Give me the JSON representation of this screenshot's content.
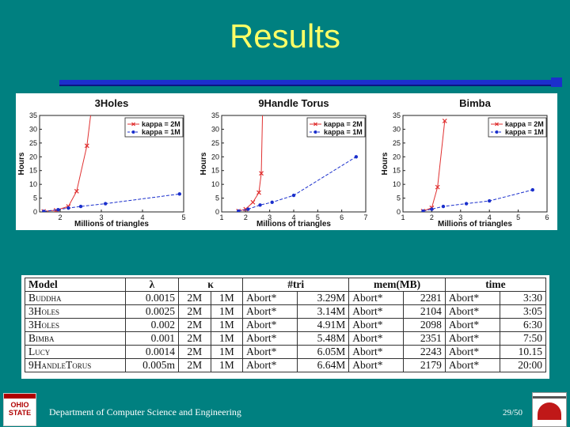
{
  "slide": {
    "title": "Results",
    "footer": "Department of Computer Science and Engineering",
    "page": "29/50",
    "logo_text": "OHIO STATE",
    "colors": {
      "background": "#008080",
      "title": "#ffff66",
      "rule": "#1c2fcc"
    }
  },
  "chart_data": [
    {
      "type": "line",
      "title": "3Holes",
      "xlabel": "Millions of triangles",
      "ylabel": "Hours",
      "xlim": [
        1.5,
        5
      ],
      "ylim": [
        0,
        35
      ],
      "xticks": [
        2,
        3,
        4,
        5
      ],
      "yticks": [
        0,
        5,
        10,
        15,
        20,
        25,
        30,
        35
      ],
      "legend": "top-right",
      "series": [
        {
          "name": "kappa = 2M",
          "color": "#e03030",
          "marker": "x",
          "dash": "solid",
          "points": [
            [
              1.6,
              0.2
            ],
            [
              1.9,
              0.6
            ],
            [
              2.2,
              2.0
            ],
            [
              2.4,
              7.5
            ],
            [
              2.65,
              24.0
            ],
            [
              2.74,
              36.0
            ]
          ]
        },
        {
          "name": "kappa = 1M",
          "color": "#1a2fcc",
          "marker": "o",
          "dash": "dashed",
          "points": [
            [
              1.6,
              0.2
            ],
            [
              1.95,
              0.8
            ],
            [
              2.2,
              1.4
            ],
            [
              2.5,
              2.0
            ],
            [
              3.1,
              3.0
            ],
            [
              4.9,
              6.5
            ]
          ]
        }
      ]
    },
    {
      "type": "line",
      "title": "9Handle Torus",
      "xlabel": "Millions of triangles",
      "ylabel": "Hours",
      "xlim": [
        1,
        7
      ],
      "ylim": [
        0,
        35
      ],
      "xticks": [
        1,
        2,
        3,
        4,
        5,
        6,
        7
      ],
      "yticks": [
        0,
        5,
        10,
        15,
        20,
        25,
        30,
        35
      ],
      "legend": "top-right",
      "series": [
        {
          "name": "kappa = 2M",
          "color": "#e03030",
          "marker": "x",
          "dash": "solid",
          "points": [
            [
              1.7,
              0.3
            ],
            [
              2.0,
              1.0
            ],
            [
              2.3,
              3.5
            ],
            [
              2.55,
              7.0
            ],
            [
              2.65,
              14.0
            ],
            [
              2.7,
              36.0
            ]
          ]
        },
        {
          "name": "kappa = 1M",
          "color": "#1a2fcc",
          "marker": "o",
          "dash": "dashed",
          "points": [
            [
              1.7,
              0.3
            ],
            [
              2.1,
              1.0
            ],
            [
              2.6,
              2.5
            ],
            [
              3.1,
              3.5
            ],
            [
              4.0,
              6.0
            ],
            [
              6.6,
              20.0
            ]
          ]
        }
      ]
    },
    {
      "type": "line",
      "title": "Bimba",
      "xlabel": "Millions of triangles",
      "ylabel": "Hours",
      "xlim": [
        1,
        6
      ],
      "ylim": [
        0,
        35
      ],
      "xticks": [
        1,
        2,
        3,
        4,
        5,
        6
      ],
      "yticks": [
        0,
        5,
        10,
        15,
        20,
        25,
        30,
        35
      ],
      "legend": "top-right",
      "series": [
        {
          "name": "kappa = 2M",
          "color": "#e03030",
          "marker": "x",
          "dash": "solid",
          "points": [
            [
              1.7,
              0.3
            ],
            [
              2.0,
              1.5
            ],
            [
              2.2,
              9.0
            ],
            [
              2.45,
              33.0
            ]
          ]
        },
        {
          "name": "kappa = 1M",
          "color": "#1a2fcc",
          "marker": "o",
          "dash": "dashed",
          "points": [
            [
              1.7,
              0.3
            ],
            [
              2.0,
              1.0
            ],
            [
              2.4,
              2.0
            ],
            [
              3.2,
              3.0
            ],
            [
              4.0,
              4.0
            ],
            [
              5.5,
              8.0
            ]
          ]
        }
      ]
    },
    {
      "type": "table",
      "headers": [
        "Model",
        "λ",
        "κ",
        "#tri",
        "mem(MB)",
        "time"
      ],
      "rows": [
        [
          "Buddha",
          "0.0015",
          "2M",
          "1M",
          "Abort*",
          "3.29M",
          "Abort*",
          "2281",
          "Abort*",
          "3:30"
        ],
        [
          "3Holes",
          "0.0025",
          "2M",
          "1M",
          "Abort*",
          "3.14M",
          "Abort*",
          "2104",
          "Abort*",
          "3:05"
        ],
        [
          "3Holes",
          "0.002",
          "2M",
          "1M",
          "Abort*",
          "4.91M",
          "Abort*",
          "2098",
          "Abort*",
          "6:30"
        ],
        [
          "Bimba",
          "0.001",
          "2M",
          "1M",
          "Abort*",
          "5.48M",
          "Abort*",
          "2351",
          "Abort*",
          "7:50"
        ],
        [
          "Lucy",
          "0.0014",
          "2M",
          "1M",
          "Abort*",
          "6.05M",
          "Abort*",
          "2243",
          "Abort*",
          "10.15"
        ],
        [
          "9HandleTorus",
          "0.005m",
          "2M",
          "1M",
          "Abort*",
          "6.64M",
          "Abort*",
          "2179",
          "Abort*",
          "20:00"
        ]
      ]
    }
  ]
}
